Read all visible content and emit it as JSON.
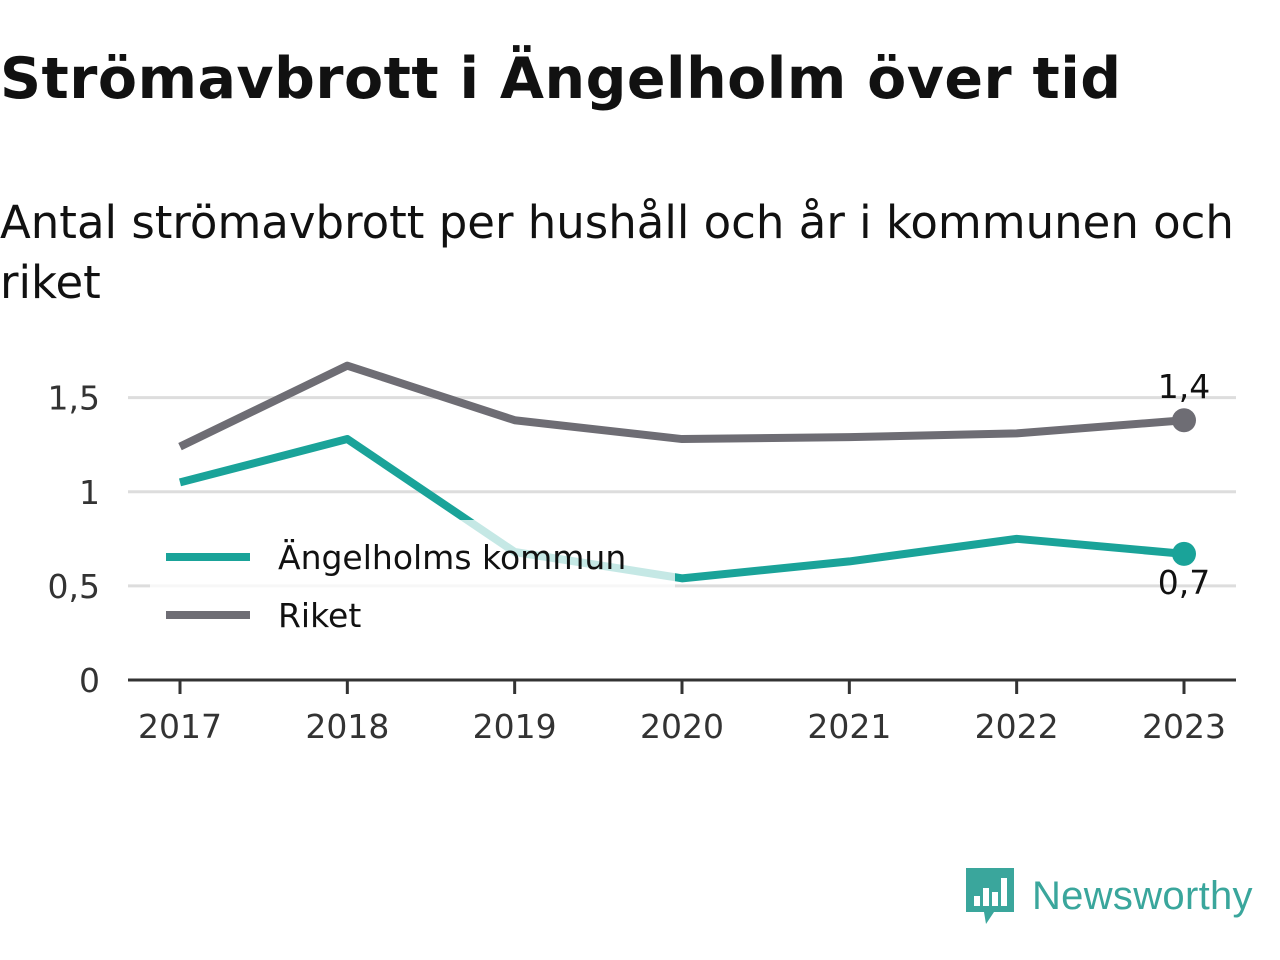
{
  "title": "Strömavbrott i Ängelholm över tid",
  "subtitle": "Antal strömavbrott per hushåll och år i kommunen och riket",
  "brand": {
    "name": "Newsworthy",
    "color": "#3aa69c",
    "logo_icon": "newsworthy-chart-logo-icon"
  },
  "chart_data": {
    "type": "line",
    "x": [
      "2017",
      "2018",
      "2019",
      "2020",
      "2021",
      "2022",
      "2023"
    ],
    "ylim": [
      0,
      1.7
    ],
    "yticks": [
      0,
      0.5,
      1,
      1.5
    ],
    "ytick_labels": [
      "0",
      "0,5",
      "1",
      "1,5"
    ],
    "grid": true,
    "legend_placement": "center-left",
    "series": [
      {
        "name": "Ängelholms kommun",
        "color": "#1aa399",
        "values": [
          1.05,
          1.28,
          0.68,
          0.54,
          0.63,
          0.75,
          0.67
        ],
        "end_label": "0,7",
        "end_label_position": "below"
      },
      {
        "name": "Riket",
        "color": "#6e6d74",
        "values": [
          1.24,
          1.67,
          1.38,
          1.28,
          1.29,
          1.31,
          1.38
        ],
        "end_label": "1,4",
        "end_label_position": "above"
      }
    ]
  }
}
